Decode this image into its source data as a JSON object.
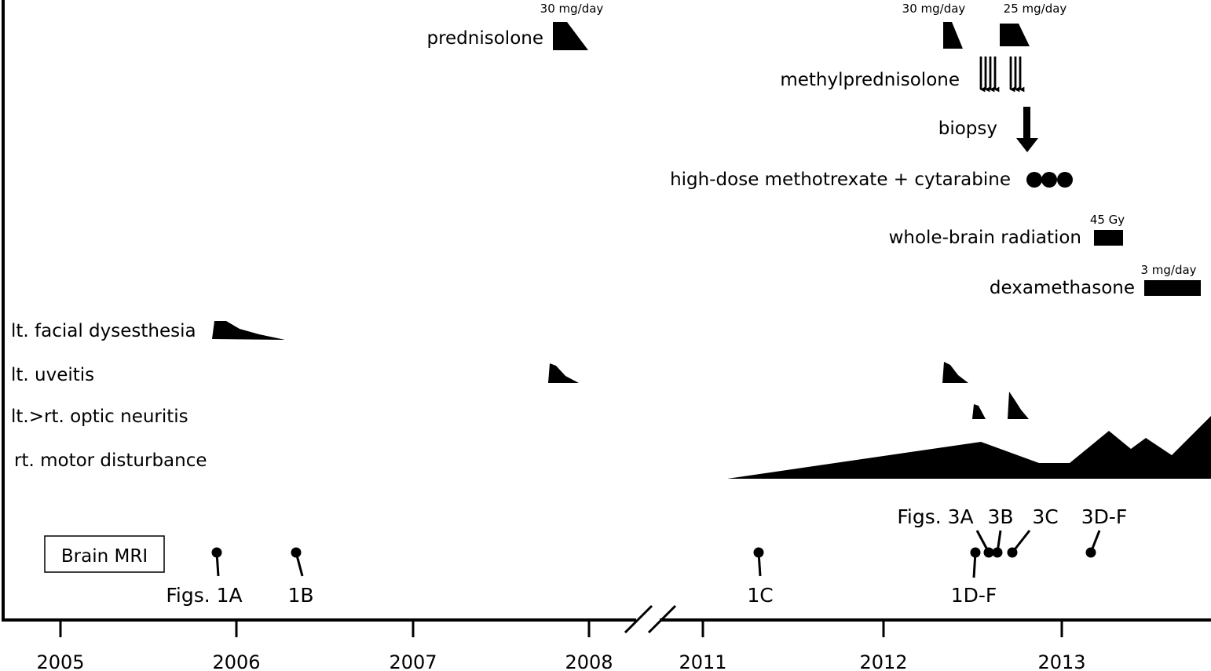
{
  "axis": {
    "years": [
      "2005",
      "2006",
      "2007",
      "2008",
      "2011",
      "2012",
      "2013"
    ]
  },
  "treatments": {
    "prednisolone": {
      "label": "prednisolone",
      "dose_1": "30 mg/day",
      "dose_2": "30 mg/day",
      "dose_3": "25 mg/day"
    },
    "methylprednisolone": {
      "label": "methylprednisolone"
    },
    "biopsy": {
      "label": "biopsy"
    },
    "chemo": {
      "label": "high-dose methotrexate + cytarabine"
    },
    "radiation": {
      "label": "whole-brain radiation",
      "dose": "45 Gy"
    },
    "dexamethasone": {
      "label": "dexamethasone",
      "dose": "3 mg/day"
    }
  },
  "symptoms": {
    "facial": "lt. facial dysesthesia",
    "uveitis": "lt. uveitis",
    "optic": "lt.>rt. optic neuritis",
    "motor": "rt. motor disturbance"
  },
  "mri": {
    "label": "Brain MRI",
    "fig_1a": "Figs. 1A",
    "fig_1b": "1B",
    "fig_1c": "1C",
    "fig_1df": "1D-F",
    "fig_3a": "Figs. 3A",
    "fig_3b": "3B",
    "fig_3c": "3C",
    "fig_3df": "3D-F"
  }
}
